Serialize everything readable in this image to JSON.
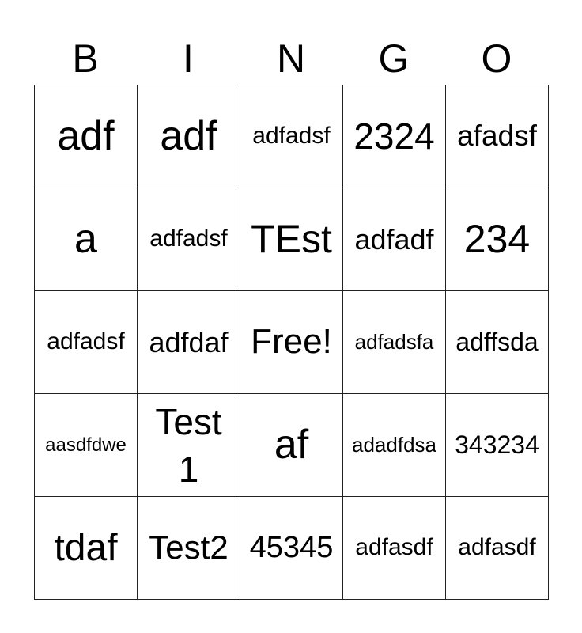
{
  "header": [
    "B",
    "I",
    "N",
    "G",
    "O"
  ],
  "rows": [
    [
      "adf",
      "adf",
      "adfadsf",
      "2324",
      "afadsf"
    ],
    [
      "a",
      "adfadsf",
      "TEst",
      "adfadf",
      "234"
    ],
    [
      "adfadsf",
      "adfdaf",
      "Free!",
      "adfadsfa",
      "adffsda"
    ],
    [
      "aasdfdwe",
      "Test 1",
      "af",
      "adadfdsa",
      "343234"
    ],
    [
      "tdaf",
      "Test2",
      "45345",
      "adfasdf",
      "adfasdf"
    ]
  ]
}
